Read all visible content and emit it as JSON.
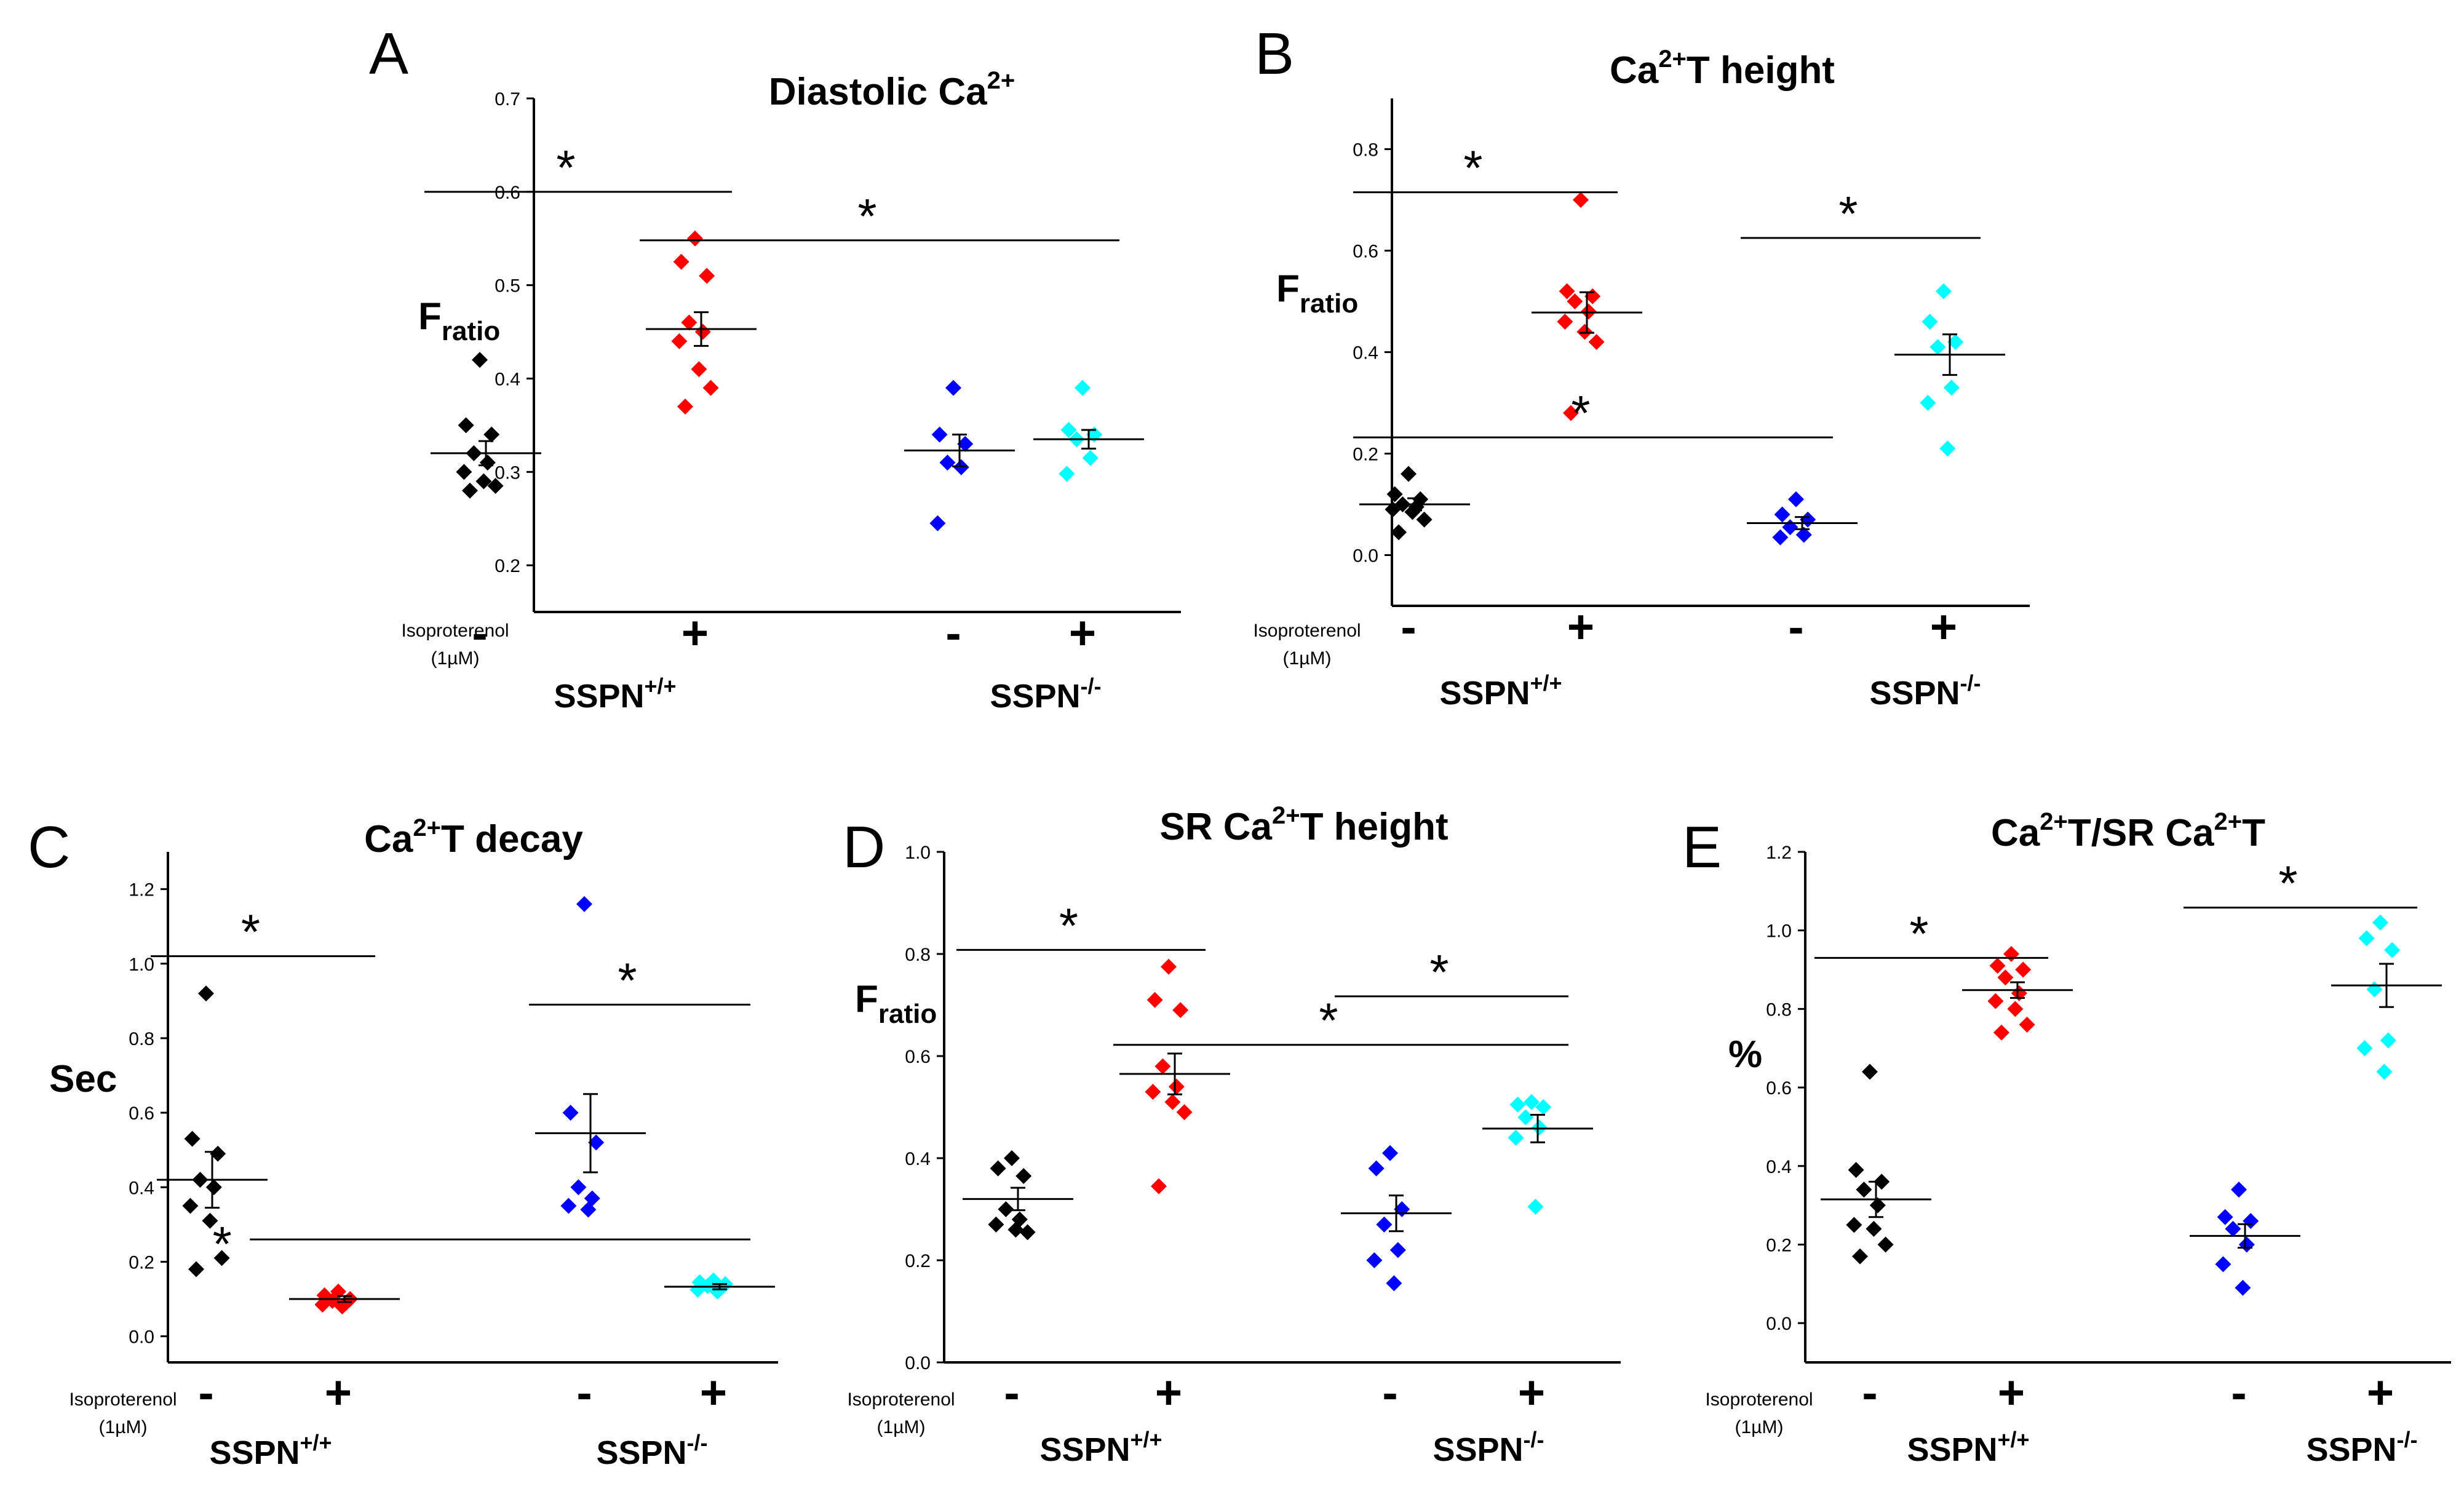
{
  "chart_data": [
    {
      "type": "scatter",
      "panel_letter": "A",
      "title": "Diastolic Ca",
      "title_superscript": "2+",
      "ylabel": "F",
      "ylabel_subscript": "ratio",
      "ylim": [
        0.15,
        0.7
      ],
      "yticks": [
        0.2,
        0.3,
        0.4,
        0.5,
        0.6,
        0.7
      ],
      "tick_decimals": 1,
      "groups": [
        {
          "name": "SSPN+/+ -",
          "color": "#000000",
          "points": [
            0.42,
            0.35,
            0.34,
            0.32,
            0.31,
            0.3,
            0.29,
            0.285,
            0.28
          ],
          "mean": 0.32,
          "sem": 0.013
        },
        {
          "name": "SSPN+/+ +",
          "color": "#ff0000",
          "points": [
            0.55,
            0.525,
            0.51,
            0.46,
            0.45,
            0.44,
            0.41,
            0.39,
            0.37
          ],
          "mean": 0.453,
          "sem": 0.018
        },
        {
          "name": "SSPN-/- -",
          "color": "#0000ff",
          "points": [
            0.39,
            0.34,
            0.33,
            0.31,
            0.305,
            0.245
          ],
          "mean": 0.323,
          "sem": 0.017
        },
        {
          "name": "SSPN-/- +",
          "color": "#00ffff",
          "points": [
            0.39,
            0.345,
            0.34,
            0.335,
            0.315,
            0.298
          ],
          "mean": 0.335,
          "sem": 0.01
        }
      ],
      "significance": [
        {
          "from": 0,
          "to": 1,
          "y": 0.6,
          "label": "*"
        },
        {
          "from": 1,
          "to": 3,
          "y": 0.548,
          "label": "*"
        }
      ],
      "treatment_label": [
        "Isoproterenol",
        "(1µM)"
      ],
      "signs": [
        "-",
        "+",
        "-",
        "+"
      ],
      "genotypes": [
        {
          "name": "SSPN",
          "superscript": "+/+"
        },
        {
          "name": "SSPN",
          "superscript": "-/-"
        }
      ]
    },
    {
      "type": "scatter",
      "panel_letter": "B",
      "title": "T height",
      "title_prefix": "Ca",
      "title_superscript": "2+",
      "ylabel": "F",
      "ylabel_subscript": "ratio",
      "ylim": [
        -0.1,
        0.9
      ],
      "yticks": [
        0.0,
        0.2,
        0.4,
        0.6,
        0.8
      ],
      "tick_decimals": 1,
      "groups": [
        {
          "name": "SSPN+/+ -",
          "color": "#000000",
          "points": [
            0.16,
            0.12,
            0.11,
            0.1,
            0.095,
            0.09,
            0.085,
            0.07,
            0.045
          ],
          "mean": 0.1,
          "sem": 0.012
        },
        {
          "name": "SSPN+/+ +",
          "color": "#ff0000",
          "points": [
            0.7,
            0.52,
            0.51,
            0.5,
            0.48,
            0.46,
            0.44,
            0.42,
            0.28
          ],
          "mean": 0.478,
          "sem": 0.04
        },
        {
          "name": "SSPN-/- -",
          "color": "#0000ff",
          "points": [
            0.11,
            0.08,
            0.07,
            0.055,
            0.04,
            0.035
          ],
          "mean": 0.063,
          "sem": 0.012
        },
        {
          "name": "SSPN-/- +",
          "color": "#00ffff",
          "points": [
            0.52,
            0.46,
            0.42,
            0.41,
            0.33,
            0.3,
            0.21
          ],
          "mean": 0.395,
          "sem": 0.04
        }
      ],
      "significance": [
        {
          "from": 0,
          "to": 1,
          "y": 0.715,
          "label": "*"
        },
        {
          "from": 2,
          "to": 3,
          "y": 0.625,
          "label": "*"
        },
        {
          "from": 0,
          "to": 2,
          "y": 0.232,
          "label": "*"
        }
      ],
      "treatment_label": [
        "Isoproterenol",
        "(1µM)"
      ],
      "signs": [
        "-",
        "+",
        "-",
        "+"
      ],
      "genotypes": [
        {
          "name": "SSPN",
          "superscript": "+/+"
        },
        {
          "name": "SSPN",
          "superscript": "-/-"
        }
      ]
    },
    {
      "type": "scatter",
      "panel_letter": "C",
      "title": "T decay",
      "title_prefix": "Ca",
      "title_superscript": "2+",
      "ylabel": "Sec",
      "ylabel_subscript": "",
      "ylim": [
        -0.07,
        1.3
      ],
      "yticks": [
        0.0,
        0.2,
        0.4,
        0.6,
        0.8,
        1.0,
        1.2
      ],
      "tick_decimals": 1,
      "groups": [
        {
          "name": "SSPN+/+ -",
          "color": "#000000",
          "points": [
            0.92,
            0.53,
            0.49,
            0.42,
            0.4,
            0.35,
            0.31,
            0.21,
            0.18
          ],
          "mean": 0.42,
          "sem": 0.075
        },
        {
          "name": "SSPN+/+ +",
          "color": "#ff0000",
          "points": [
            0.12,
            0.11,
            0.1,
            0.095,
            0.09,
            0.085,
            0.08
          ],
          "mean": 0.1,
          "sem": 0.008
        },
        {
          "name": "SSPN-/- -",
          "color": "#0000ff",
          "points": [
            1.16,
            0.6,
            0.52,
            0.4,
            0.37,
            0.35,
            0.34
          ],
          "mean": 0.545,
          "sem": 0.105
        },
        {
          "name": "SSPN-/- +",
          "color": "#00ffff",
          "points": [
            0.15,
            0.145,
            0.14,
            0.135,
            0.13,
            0.125,
            0.12
          ],
          "mean": 0.133,
          "sem": 0.007
        }
      ],
      "significance": [
        {
          "from": 0,
          "to": 1,
          "y": 1.02,
          "label": "*"
        },
        {
          "from": 2,
          "to": 3,
          "y": 0.89,
          "label": "*"
        },
        {
          "from": 0.75,
          "to": 3,
          "y": 0.26,
          "label": "*",
          "star_left": true
        }
      ],
      "treatment_label": [
        "Isoproterenol",
        "(1µM)"
      ],
      "signs": [
        "-",
        "+",
        "-",
        "+"
      ],
      "genotypes": [
        {
          "name": "SSPN",
          "superscript": "+/+"
        },
        {
          "name": "SSPN",
          "superscript": "-/-"
        }
      ]
    },
    {
      "type": "scatter",
      "panel_letter": "D",
      "title": "T height",
      "title_prefix": "SR Ca",
      "title_superscript": "2+",
      "ylabel": "F",
      "ylabel_subscript": "ratio",
      "ylim": [
        0.0,
        1.0
      ],
      "yticks": [
        0.0,
        0.2,
        0.4,
        0.6,
        0.8,
        1.0
      ],
      "tick_decimals": 1,
      "groups": [
        {
          "name": "SSPN+/+ -",
          "color": "#000000",
          "points": [
            0.4,
            0.38,
            0.365,
            0.3,
            0.28,
            0.27,
            0.26,
            0.255
          ],
          "mean": 0.32,
          "sem": 0.022
        },
        {
          "name": "SSPN+/+ +",
          "color": "#ff0000",
          "points": [
            0.775,
            0.71,
            0.69,
            0.58,
            0.54,
            0.53,
            0.51,
            0.49,
            0.345
          ],
          "mean": 0.565,
          "sem": 0.04
        },
        {
          "name": "SSPN-/- -",
          "color": "#0000ff",
          "points": [
            0.41,
            0.38,
            0.3,
            0.27,
            0.22,
            0.2,
            0.155
          ],
          "mean": 0.292,
          "sem": 0.035
        },
        {
          "name": "SSPN-/- +",
          "color": "#00ffff",
          "points": [
            0.51,
            0.505,
            0.5,
            0.48,
            0.46,
            0.44,
            0.305
          ],
          "mean": 0.458,
          "sem": 0.027
        }
      ],
      "significance": [
        {
          "from": 0,
          "to": 1,
          "y": 0.808,
          "label": "*"
        },
        {
          "from": 2,
          "to": 3,
          "y": 0.717,
          "label": "*"
        },
        {
          "from": 1,
          "to": 3,
          "y": 0.622,
          "label": "*"
        }
      ],
      "treatment_label": [
        "Isoproterenol",
        "(1µM)"
      ],
      "signs": [
        "-",
        "+",
        "-",
        "+"
      ],
      "genotypes": [
        {
          "name": "SSPN",
          "superscript": "+/+"
        },
        {
          "name": "SSPN",
          "superscript": "-/-"
        }
      ]
    },
    {
      "type": "scatter",
      "panel_letter": "E",
      "title": "T",
      "title_prefix": "Ca",
      "title_middle": "T/SR Ca",
      "title_superscript": "2+",
      "ylabel": "%",
      "ylabel_subscript": "",
      "ylim": [
        -0.1,
        1.2
      ],
      "yticks": [
        0.0,
        0.2,
        0.4,
        0.6,
        0.8,
        1.0,
        1.2
      ],
      "tick_decimals": 1,
      "groups": [
        {
          "name": "SSPN+/+ -",
          "color": "#000000",
          "points": [
            0.64,
            0.39,
            0.36,
            0.34,
            0.3,
            0.25,
            0.24,
            0.2,
            0.17
          ],
          "mean": 0.315,
          "sem": 0.045
        },
        {
          "name": "SSPN+/+ +",
          "color": "#ff0000",
          "points": [
            0.94,
            0.91,
            0.9,
            0.88,
            0.84,
            0.82,
            0.8,
            0.76,
            0.74
          ],
          "mean": 0.848,
          "sem": 0.02
        },
        {
          "name": "SSPN-/- -",
          "color": "#0000ff",
          "points": [
            0.34,
            0.27,
            0.26,
            0.24,
            0.2,
            0.15,
            0.09
          ],
          "mean": 0.222,
          "sem": 0.03
        },
        {
          "name": "SSPN-/- +",
          "color": "#00ffff",
          "points": [
            1.02,
            0.98,
            0.95,
            0.85,
            0.72,
            0.7,
            0.64
          ],
          "mean": 0.86,
          "sem": 0.055
        }
      ],
      "significance": [
        {
          "from": 0,
          "to": 1,
          "y": 0.93,
          "label": "*"
        },
        {
          "from": 2,
          "to": 3,
          "y": 1.058,
          "label": "*"
        }
      ],
      "treatment_label": [
        "Isoproterenol",
        "(1µM)"
      ],
      "signs": [
        "-",
        "+",
        "-",
        "+"
      ],
      "genotypes": [
        {
          "name": "SSPN",
          "superscript": "+/+"
        },
        {
          "name": "SSPN",
          "superscript": "-/-"
        }
      ]
    }
  ]
}
